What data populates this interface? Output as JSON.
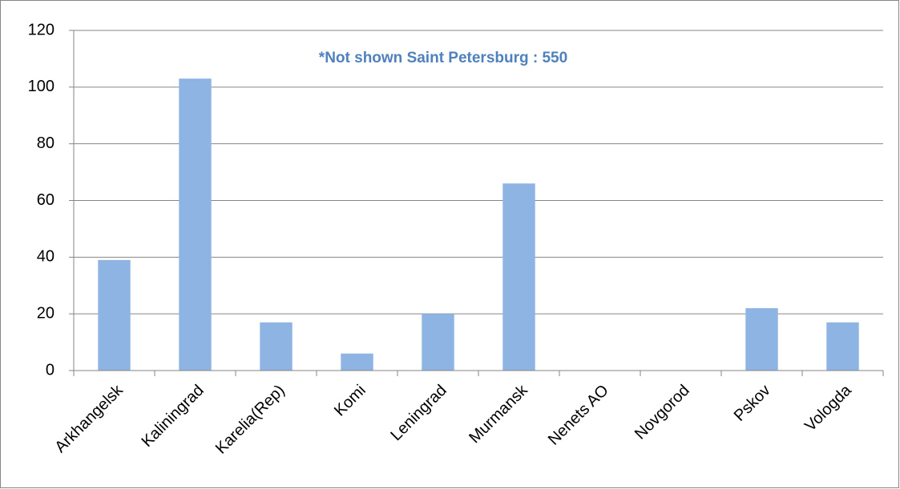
{
  "chart_data": {
    "type": "bar",
    "annotation": "*Not shown Saint Petersburg : 550",
    "categories": [
      "Arkhangelsk",
      "Kaliningrad",
      "Karelia(Rep)",
      "Komi",
      "Leningrad",
      "Murmansk",
      "Nenets AO",
      "Novgorod",
      "Pskov",
      "Vologda"
    ],
    "values": [
      39,
      103,
      17,
      6,
      20,
      66,
      0,
      0,
      22,
      17
    ],
    "color": "#8eb4e3",
    "ylim": [
      0,
      120
    ],
    "yticks": [
      0,
      20,
      40,
      60,
      80,
      100,
      120
    ],
    "grid": true
  }
}
